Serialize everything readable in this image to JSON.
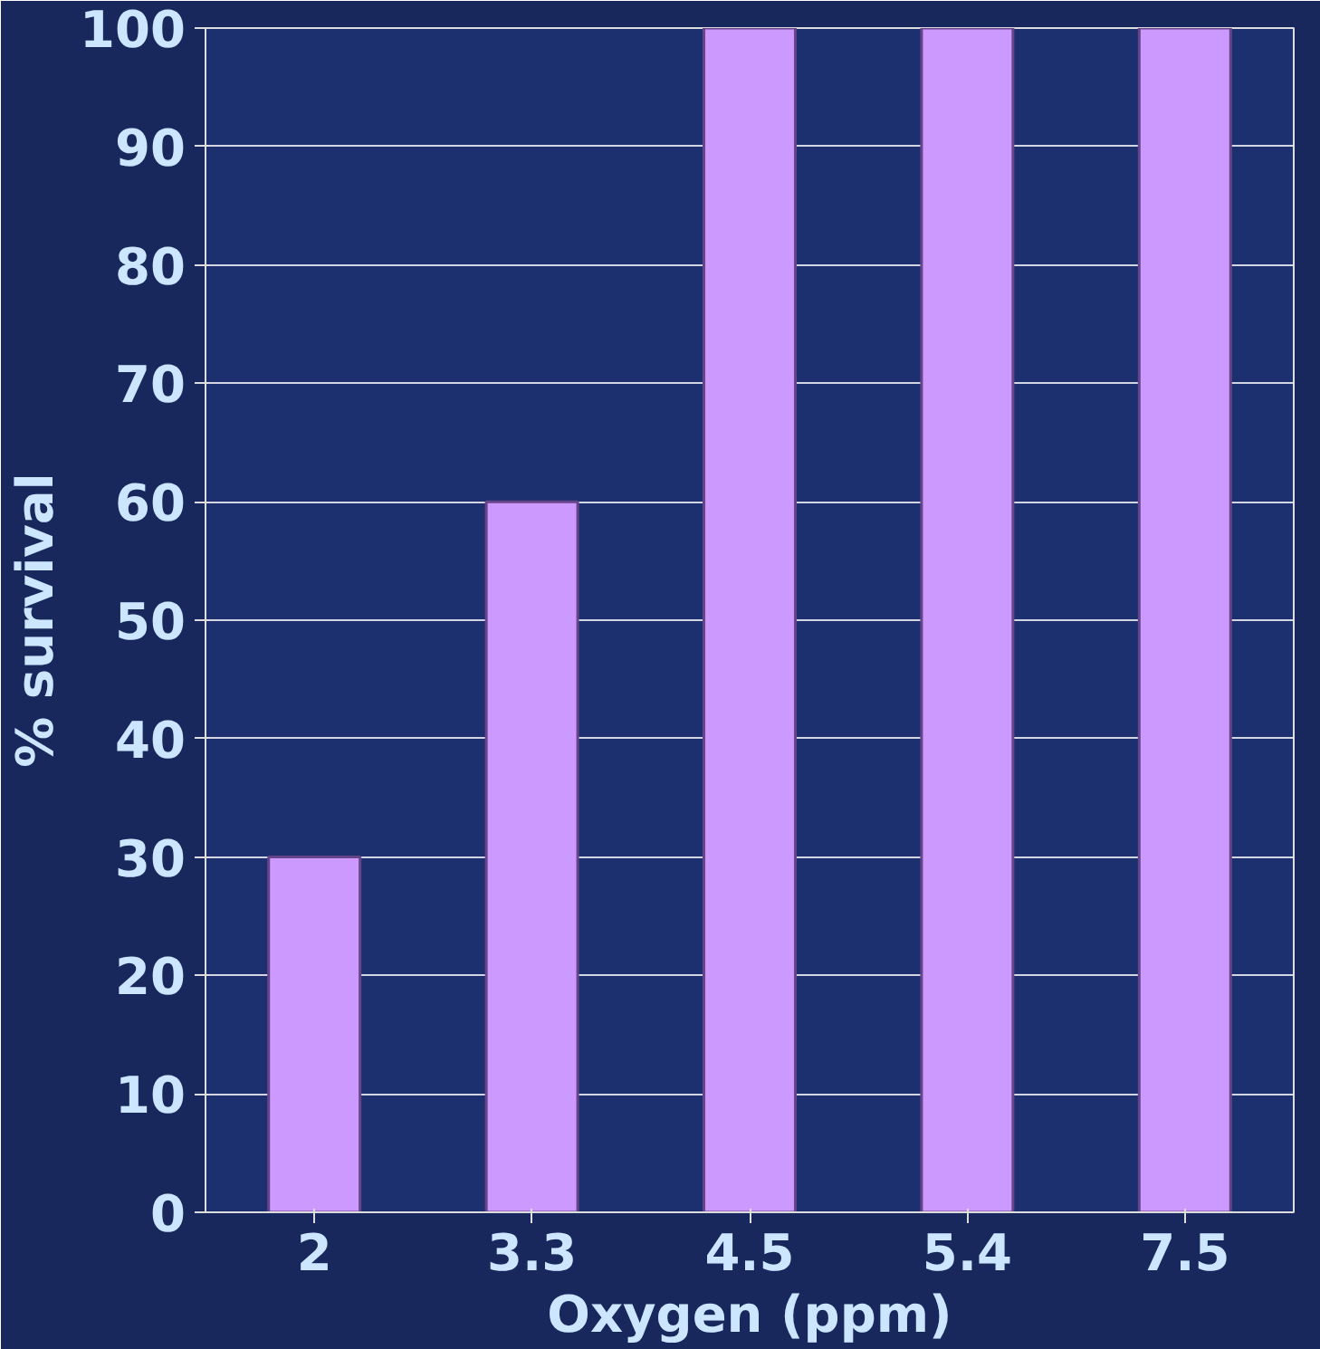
{
  "chart_data": {
    "type": "bar",
    "xlabel": "Oxygen (ppm)",
    "ylabel": "% survival",
    "categories": [
      "2",
      "3.3",
      "4.5",
      "5.4",
      "7.5"
    ],
    "values": [
      30,
      60,
      100,
      100,
      100
    ],
    "color": "#cc99ff",
    "ylim": [
      0,
      100
    ],
    "yticks": [
      0,
      10,
      20,
      30,
      40,
      50,
      60,
      70,
      80,
      90,
      100
    ],
    "grid": "y"
  }
}
